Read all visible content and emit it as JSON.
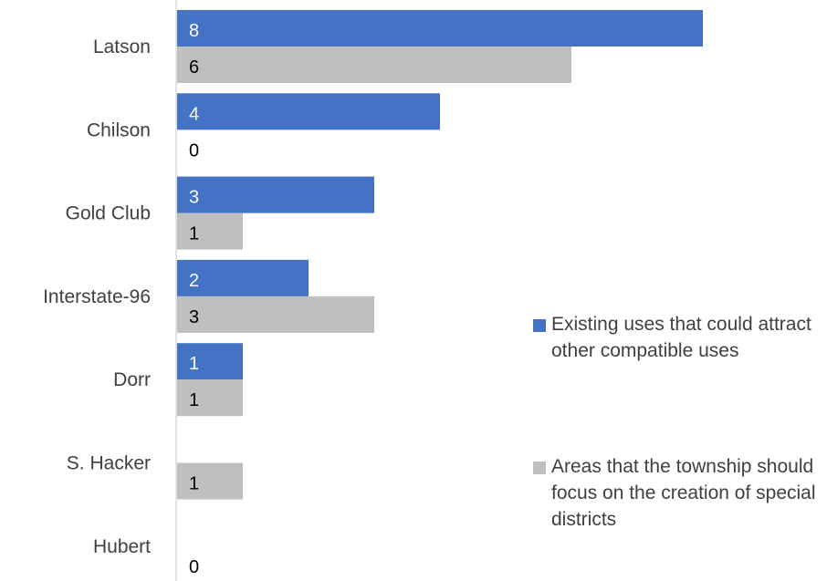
{
  "chart_data": {
    "type": "bar",
    "orientation": "horizontal",
    "categories": [
      "Latson",
      "Chilson",
      "Gold Club",
      "Interstate-96",
      "Dorr",
      "S. Hacker",
      "Hubert"
    ],
    "series": [
      {
        "name": "Existing uses that could attract other compatible uses",
        "color": "#4472C4",
        "label_color": "#ffffff",
        "values": [
          8,
          4,
          3,
          2,
          1,
          null,
          null
        ]
      },
      {
        "name": "Areas that the township should focus on the creation of special districts",
        "color": "#BFBFBF",
        "label_color": "#000000",
        "values": [
          6,
          0,
          1,
          3,
          1,
          1,
          0
        ]
      }
    ],
    "xlim": [
      0,
      10
    ],
    "legend_position": "right",
    "grid": false,
    "data_labels": true
  }
}
